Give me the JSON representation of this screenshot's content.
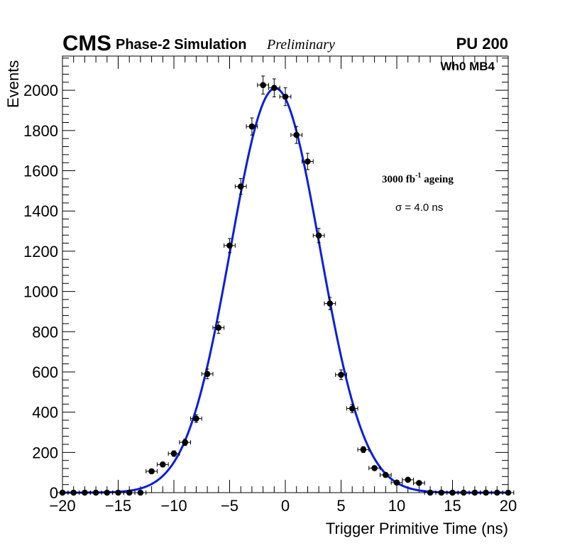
{
  "header": {
    "cms": "CMS",
    "phase": "Phase-2 Simulation",
    "preliminary": "Preliminary",
    "pileup": "PU 200"
  },
  "annotations": {
    "station": "Wh0 MB4",
    "ageing_prefix": "3000 fb",
    "ageing_exp": "-1",
    "ageing_suffix": " ageing",
    "sigma_symbol": "σ",
    "sigma_text": " = 4.0 ns"
  },
  "chart_data": {
    "type": "scatter",
    "title": "",
    "xlabel": "Trigger Primitive Time (ns)",
    "ylabel": "Events",
    "xlim": [
      -20,
      20
    ],
    "ylim": [
      0,
      2170
    ],
    "xticks": [
      -20,
      -15,
      -10,
      -5,
      0,
      5,
      10,
      15,
      20
    ],
    "xtick_labels": [
      "−20",
      "−15",
      "−10",
      "−5",
      "0",
      "5",
      "10",
      "15",
      "20"
    ],
    "yticks": [
      0,
      200,
      400,
      600,
      800,
      1000,
      1200,
      1400,
      1600,
      1800,
      2000
    ],
    "ytick_labels": [
      "0",
      "200",
      "400",
      "600",
      "800",
      "1000",
      "1200",
      "1400",
      "1600",
      "1800",
      "2000"
    ],
    "bin_width": 1,
    "series": [
      {
        "name": "Simulation",
        "marker": "circle",
        "color": "#000000",
        "x": [
          -20,
          -19,
          -18,
          -17,
          -16,
          -15,
          -14,
          -13,
          -12,
          -11,
          -10,
          -9,
          -8,
          -7,
          -6,
          -5,
          -4,
          -3,
          -2,
          -1,
          0,
          1,
          2,
          3,
          4,
          5,
          6,
          7,
          8,
          9,
          10,
          11,
          12,
          13,
          14,
          15,
          16,
          17,
          18,
          19,
          20
        ],
        "y": [
          0,
          0,
          0,
          0,
          0,
          0,
          0,
          0,
          106,
          140,
          194,
          250,
          368,
          590,
          820,
          1228,
          1522,
          1820,
          2026,
          2012,
          1968,
          1778,
          1646,
          1278,
          940,
          586,
          418,
          214,
          122,
          88,
          50,
          64,
          48,
          0,
          0,
          0,
          0,
          0,
          0,
          0,
          0
        ]
      },
      {
        "name": "Gaussian fit",
        "type": "line",
        "color": "#0a1ee0",
        "amplitude": 2010,
        "mean": -0.9,
        "sigma": 4.0
      }
    ]
  }
}
